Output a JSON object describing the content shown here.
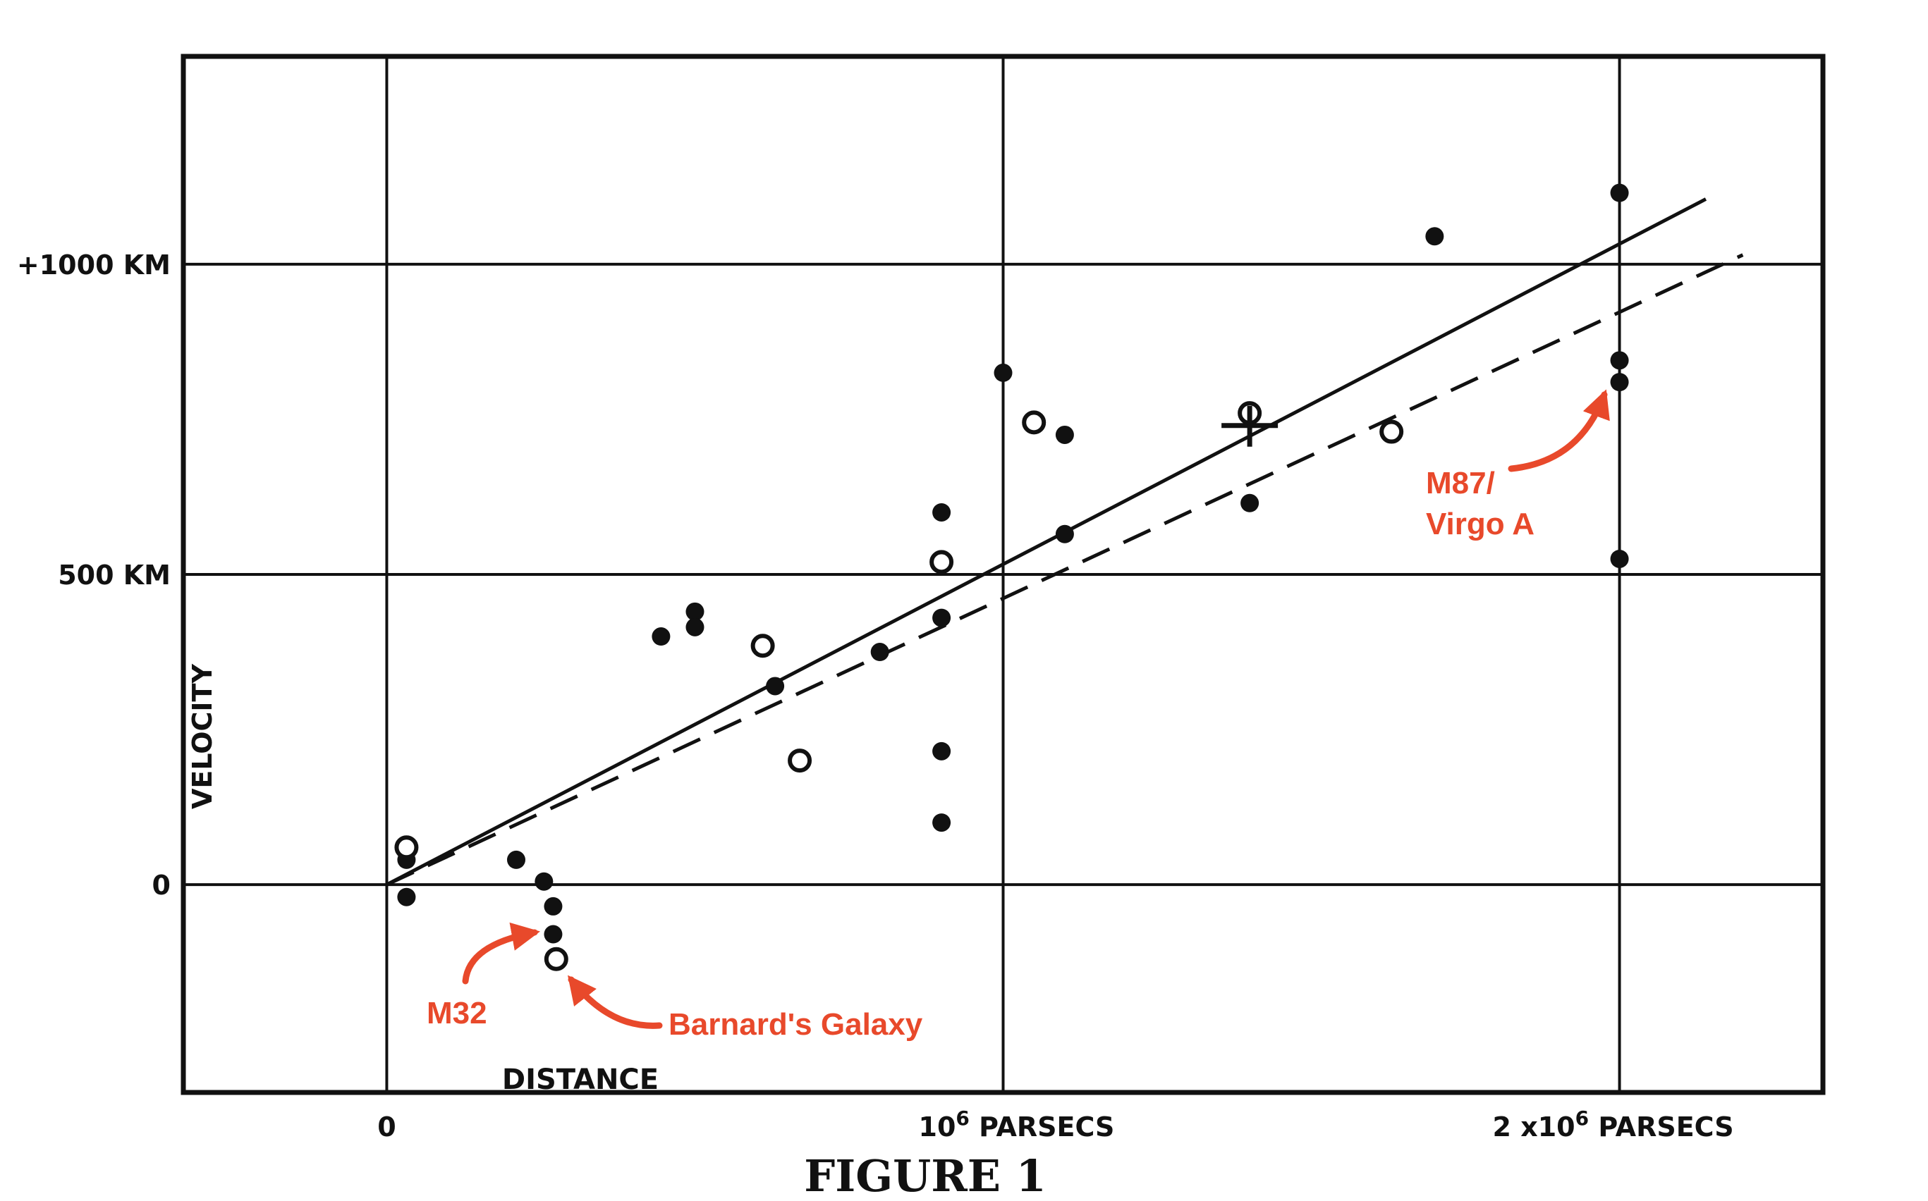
{
  "chart_data": {
    "type": "scatter",
    "title": "FIGURE 1",
    "xlabel": "DISTANCE",
    "ylabel": "VELOCITY",
    "xlim": [
      -330000,
      2330000
    ],
    "ylim": [
      -335,
      1335
    ],
    "grid": true,
    "x_ticks": [
      {
        "value": 0,
        "label": "0",
        "sup": ""
      },
      {
        "value": 1000000,
        "label": "10",
        "sup": "6",
        "unit": "PARSECS"
      },
      {
        "value": 2000000,
        "label": "2 x10",
        "sup": "6",
        "unit": "PARSECS"
      }
    ],
    "y_ticks": [
      {
        "value": 0,
        "label": "0"
      },
      {
        "value": 500,
        "label": "500 KM"
      },
      {
        "value": 1000,
        "label": "+1000 KM"
      }
    ],
    "series": [
      {
        "marker": "filled",
        "points": [
          [
            32000,
            40
          ],
          [
            32000,
            -20
          ],
          [
            210000,
            40
          ],
          [
            255000,
            5
          ],
          [
            270000,
            -35
          ],
          [
            270000,
            -80
          ],
          [
            445000,
            400
          ],
          [
            500000,
            440
          ],
          [
            500000,
            415
          ],
          [
            630000,
            320
          ],
          [
            800000,
            375
          ],
          [
            900000,
            600
          ],
          [
            900000,
            430
          ],
          [
            900000,
            215
          ],
          [
            900000,
            100
          ],
          [
            1000000,
            825
          ],
          [
            1100000,
            725
          ],
          [
            1100000,
            565
          ],
          [
            1400000,
            615
          ],
          [
            1700000,
            1045
          ],
          [
            2000000,
            1115
          ],
          [
            2000000,
            845
          ],
          [
            2000000,
            810
          ],
          [
            2000000,
            525
          ]
        ]
      },
      {
        "marker": "open",
        "points": [
          [
            32000,
            60
          ],
          [
            275000,
            -120
          ],
          [
            610000,
            385
          ],
          [
            670000,
            200
          ],
          [
            900000,
            520
          ],
          [
            1050000,
            745
          ],
          [
            1400000,
            760
          ],
          [
            1630000,
            730
          ]
        ]
      },
      {
        "marker": "cross",
        "points": [
          [
            1400000,
            740
          ]
        ]
      }
    ],
    "fit_lines": [
      {
        "style": "solid",
        "x": [
          0,
          2140000
        ],
        "y": [
          0,
          1105
        ]
      },
      {
        "style": "dashed",
        "x": [
          0,
          2200000
        ],
        "y": [
          0,
          1015
        ]
      }
    ],
    "annotations": [
      {
        "text": "M32",
        "color": "#e8492b"
      },
      {
        "text": "Barnard's Galaxy",
        "color": "#e8492b"
      },
      {
        "text": "M87/\nVirgo A",
        "lines": [
          "M87/",
          "Virgo A"
        ],
        "color": "#e8492b"
      }
    ]
  }
}
